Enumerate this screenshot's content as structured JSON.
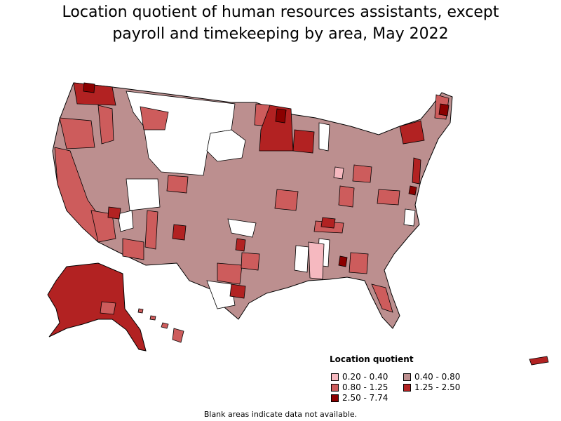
{
  "title_line1": "Location quotient of human resources assistants, except",
  "title_line2": "payroll and timekeeping by area, May 2022",
  "legend": {
    "title": "Location quotient",
    "items": [
      {
        "label": "0.20 - 0.40",
        "color": "#f6b9c0"
      },
      {
        "label": "0.40 - 0.80",
        "color": "#bc8f8f"
      },
      {
        "label": "0.80 - 1.25",
        "color": "#cd5c5c"
      },
      {
        "label": "1.25 - 2.50",
        "color": "#b22222"
      },
      {
        "label": "2.50 - 7.74",
        "color": "#8b0000"
      }
    ]
  },
  "footnote": "Blank areas indicate data not available.",
  "colors": {
    "very_low": "#f6b9c0",
    "low": "#bc8f8f",
    "mid": "#cd5c5c",
    "high": "#b22222",
    "very_high": "#8b0000",
    "no_data": "#ffffff",
    "border": "#000000"
  }
}
